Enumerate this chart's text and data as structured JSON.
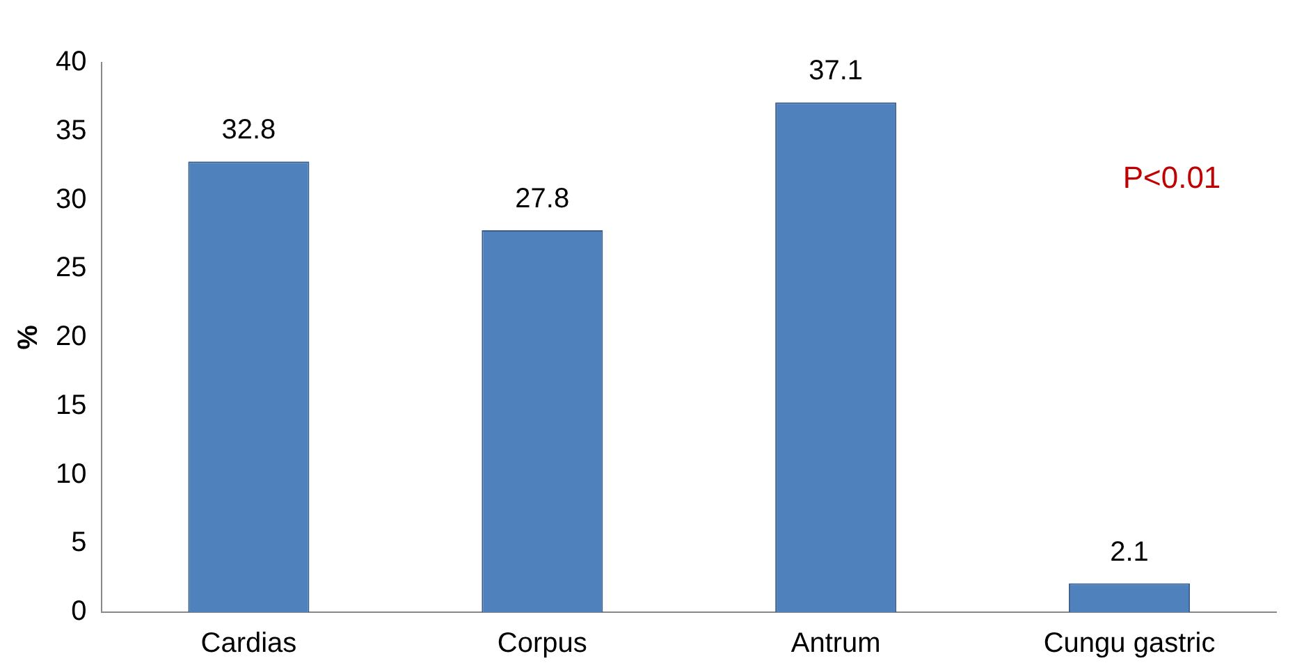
{
  "chart_data": {
    "type": "bar",
    "ylabel": "%",
    "categories": [
      "Cardias",
      "Corpus",
      "Antrum",
      "Cungu gastric"
    ],
    "values": [
      32.8,
      27.8,
      37.1,
      2.1
    ],
    "color": "#4f81bd",
    "ylim": [
      0,
      40
    ],
    "yticks": [
      0,
      5,
      10,
      15,
      20,
      25,
      30,
      35,
      40
    ],
    "grid": false,
    "data_labels": true,
    "annotations": [
      "P<0.01"
    ]
  }
}
